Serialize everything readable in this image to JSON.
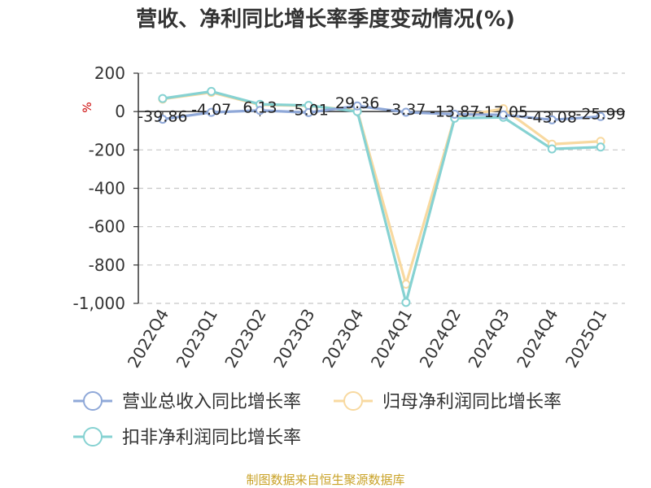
{
  "chart_data": {
    "type": "line",
    "title": "营收、净利同比增长率季度变动情况(%)",
    "ylabel": "%",
    "xlabel": "",
    "ylim": [
      -1000,
      200
    ],
    "yticks": [
      "200",
      "0",
      "-200",
      "-400",
      "-600",
      "-800",
      "-1,000"
    ],
    "ytick_values": [
      200,
      0,
      -200,
      -400,
      -600,
      -800,
      -1000
    ],
    "grid": true,
    "legend_position": "bottom",
    "categories": [
      "2022Q4",
      "2023Q1",
      "2023Q2",
      "2023Q3",
      "2023Q4",
      "2024Q1",
      "2024Q2",
      "2024Q3",
      "2024Q4",
      "2025Q1"
    ],
    "series": [
      {
        "name": "营业总收入同比增长率",
        "color": "#8fa8d8",
        "values": [
          -39.86,
          -4.07,
          6.13,
          -5.01,
          29.36,
          -3.37,
          -13.87,
          -17.05,
          -43.08,
          -25.99
        ],
        "labels": [
          "-39.86",
          "-4.07",
          "6.13",
          "-5.01",
          "29.36",
          "-3.37",
          "-13.87",
          "-17.05",
          "-43.08",
          "-25.99"
        ]
      },
      {
        "name": "归母净利润同比增长率",
        "color": "#f8d9a0",
        "values": [
          65,
          100,
          35,
          30,
          5,
          -900,
          -30,
          15,
          -170,
          -155
        ]
      },
      {
        "name": "扣非净利润同比增长率",
        "color": "#86d2d2",
        "values": [
          68,
          105,
          38,
          32,
          0,
          -995,
          -35,
          -30,
          -195,
          -185
        ]
      }
    ]
  },
  "source": "制图数据来自恒生聚源数据库"
}
